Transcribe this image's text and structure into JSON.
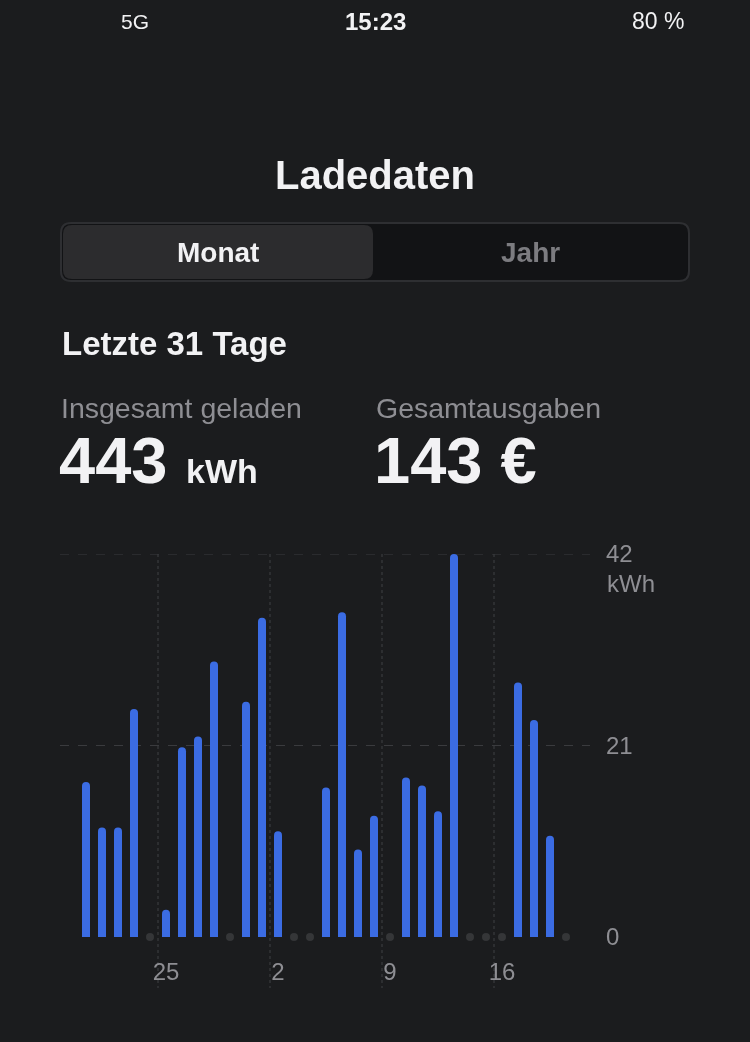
{
  "chart_data": {
    "type": "bar",
    "title": "Ladedaten",
    "subtitle": "Letzte 31 Tage",
    "ylabel": "kWh",
    "annotations": [
      "5G",
      "15:23",
      "80 %",
      "Monat",
      "Jahr",
      "Insgesamt geladen",
      "443",
      "kWh",
      "Gesamtausgaben",
      "143 €"
    ],
    "categories": [
      null,
      null,
      null,
      null,
      null,
      "25",
      null,
      null,
      null,
      null,
      null,
      null,
      "2",
      null,
      null,
      null,
      null,
      null,
      null,
      "9",
      null,
      null,
      null,
      null,
      null,
      null,
      "16",
      null,
      null,
      null,
      null
    ],
    "series": [
      {
        "color": "#3b6ce3",
        "values": [
          17,
          12,
          12,
          25,
          null,
          3,
          20.8,
          22,
          30.2,
          null,
          25.8,
          35,
          11.6,
          null,
          null,
          16.4,
          35.6,
          9.6,
          13.3,
          null,
          17.5,
          16.6,
          13.8,
          42,
          null,
          null,
          null,
          27.9,
          23.8,
          11.1,
          null
        ]
      },
      {
        "type": "scatter",
        "color": "#353638",
        "values": [
          null,
          null,
          null,
          null,
          0,
          null,
          null,
          null,
          null,
          0,
          null,
          null,
          null,
          0,
          0,
          null,
          null,
          null,
          null,
          0,
          null,
          null,
          null,
          null,
          0,
          0,
          0,
          null,
          null,
          null,
          0
        ]
      }
    ],
    "marker": "circle",
    "ylim": [
      0,
      42
    ],
    "yticks": [
      0,
      21,
      42
    ],
    "grid": true
  }
}
